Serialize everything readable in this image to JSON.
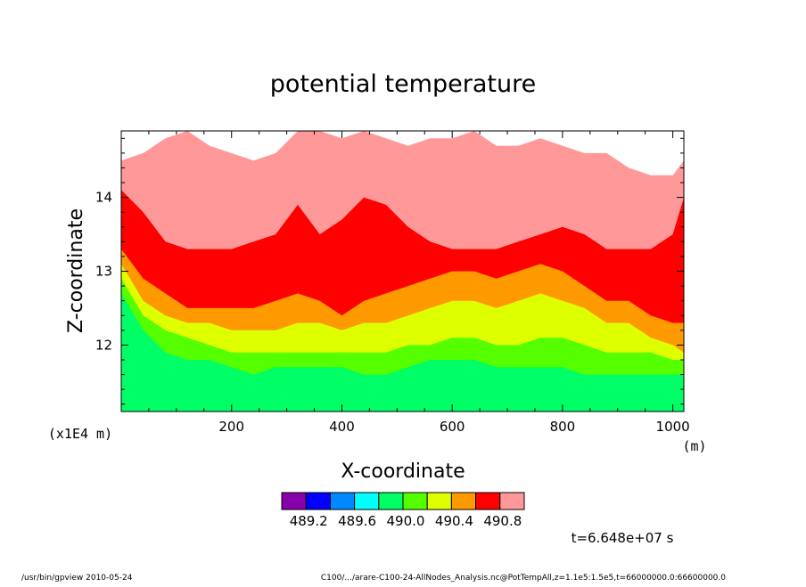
{
  "chart_data": {
    "type": "heatmap",
    "title": "potential temperature",
    "xlabel": "X-coordinate",
    "ylabel": "Z-coordinate",
    "x_unit": "(m)",
    "y_scale_note": "(x1E4 m)",
    "xlim": [
      0,
      1020
    ],
    "ylim": [
      11.1,
      14.9
    ],
    "x_ticks": [
      200,
      400,
      600,
      800,
      1000
    ],
    "y_ticks": [
      12,
      13,
      14
    ],
    "levels": [
      489.0,
      489.2,
      489.4,
      489.6,
      489.8,
      490.0,
      490.2,
      490.4,
      490.6,
      490.8,
      491.0
    ],
    "colorbar_labels": [
      "489.2",
      "489.6",
      "490.0",
      "490.4",
      "490.8"
    ],
    "colors": [
      "#8800aa",
      "#0000ff",
      "#0088ff",
      "#00ffff",
      "#00ff66",
      "#55ff00",
      "#ddff00",
      "#ff9900",
      "#ff0000",
      "#ff9999"
    ],
    "above_range_color": "#ffffff",
    "contour_bands": {
      "x": [
        0,
        40,
        80,
        120,
        160,
        200,
        240,
        280,
        320,
        360,
        400,
        440,
        480,
        520,
        560,
        600,
        640,
        680,
        720,
        760,
        800,
        840,
        880,
        920,
        960,
        1000,
        1020
      ],
      "boundaries": [
        {
          "level": 490.0,
          "z": [
            12.7,
            12.2,
            11.9,
            11.8,
            11.8,
            11.7,
            11.6,
            11.7,
            11.7,
            11.7,
            11.7,
            11.6,
            11.6,
            11.7,
            11.8,
            11.8,
            11.8,
            11.7,
            11.7,
            11.7,
            11.7,
            11.6,
            11.6,
            11.6,
            11.6,
            11.6,
            11.6
          ]
        },
        {
          "level": 490.2,
          "z": [
            12.9,
            12.4,
            12.2,
            12.1,
            12.0,
            11.9,
            11.9,
            11.9,
            11.9,
            11.9,
            11.9,
            11.9,
            11.9,
            12.0,
            12.0,
            12.1,
            12.1,
            12.0,
            12.0,
            12.1,
            12.1,
            12.0,
            11.9,
            11.9,
            11.9,
            11.8,
            11.8
          ]
        },
        {
          "level": 490.4,
          "z": [
            13.1,
            12.6,
            12.4,
            12.3,
            12.3,
            12.2,
            12.2,
            12.2,
            12.3,
            12.3,
            12.2,
            12.3,
            12.3,
            12.4,
            12.5,
            12.6,
            12.6,
            12.5,
            12.6,
            12.7,
            12.6,
            12.5,
            12.3,
            12.3,
            12.1,
            12.0,
            11.9
          ]
        },
        {
          "level": 490.6,
          "z": [
            13.3,
            12.9,
            12.7,
            12.5,
            12.5,
            12.5,
            12.5,
            12.6,
            12.7,
            12.6,
            12.4,
            12.6,
            12.7,
            12.8,
            12.9,
            13.0,
            13.0,
            12.9,
            13.0,
            13.1,
            13.0,
            12.8,
            12.6,
            12.6,
            12.4,
            12.3,
            12.3
          ]
        },
        {
          "level": 490.8,
          "z": [
            14.1,
            13.8,
            13.4,
            13.3,
            13.3,
            13.3,
            13.4,
            13.5,
            13.9,
            13.5,
            13.7,
            14.0,
            13.9,
            13.6,
            13.4,
            13.3,
            13.3,
            13.3,
            13.4,
            13.5,
            13.6,
            13.5,
            13.3,
            13.3,
            13.3,
            13.5,
            14.0
          ]
        },
        {
          "level": 491.0,
          "z": [
            14.5,
            14.6,
            14.8,
            14.9,
            14.7,
            14.6,
            14.5,
            14.6,
            14.9,
            14.9,
            14.8,
            14.9,
            14.8,
            14.7,
            14.8,
            14.8,
            14.9,
            14.7,
            14.7,
            14.8,
            14.7,
            14.6,
            14.6,
            14.4,
            14.3,
            14.3,
            14.5
          ]
        }
      ]
    }
  },
  "time_label": "t=6.648e+07 s",
  "footer": {
    "program": "/usr/bin/gpview   2010-05-24",
    "source": "C100/.../arare-C100-24-AllNodes_Analysis.nc@PotTempAll,z=1.1e5:1.5e5,t=66000000.0:66600000.0"
  }
}
